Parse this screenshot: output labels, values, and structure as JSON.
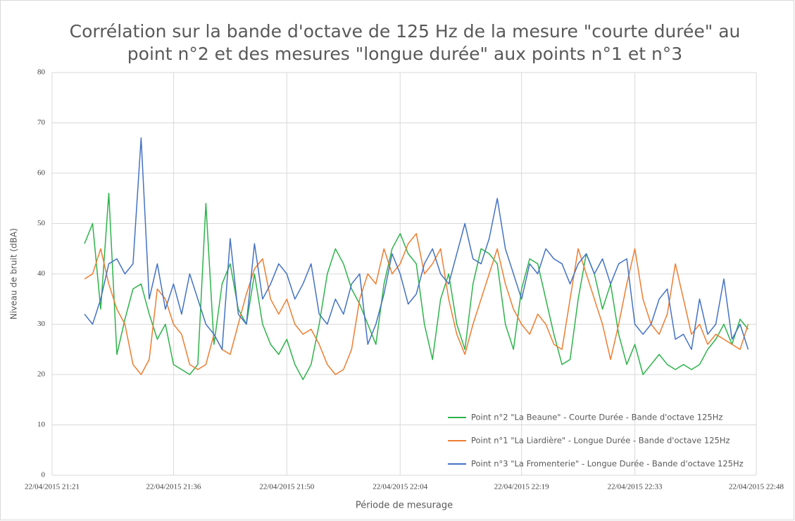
{
  "chart_data": {
    "type": "line",
    "title": [
      "Corrélation sur la bande d'octave de 125 Hz de la mesure \"courte durée\" au",
      "point n°2 et des mesures \"longue durée\" aux points n°1 et n°3"
    ],
    "x_label": "Période de mesurage",
    "y_label": "Niveau de bruit (dBA)",
    "x": [
      "22/04/2015 21:25",
      "22/04/2015 21:26",
      "22/04/2015 21:27",
      "22/04/2015 21:28",
      "22/04/2015 21:29",
      "22/04/2015 21:30",
      "22/04/2015 21:31",
      "22/04/2015 21:32",
      "22/04/2015 21:33",
      "22/04/2015 21:34",
      "22/04/2015 21:35",
      "22/04/2015 21:36",
      "22/04/2015 21:37",
      "22/04/2015 21:38",
      "22/04/2015 21:39",
      "22/04/2015 21:40",
      "22/04/2015 21:41",
      "22/04/2015 21:42",
      "22/04/2015 21:43",
      "22/04/2015 21:44",
      "22/04/2015 21:45",
      "22/04/2015 21:46",
      "22/04/2015 21:47",
      "22/04/2015 21:48",
      "22/04/2015 21:49",
      "22/04/2015 21:50",
      "22/04/2015 21:51",
      "22/04/2015 21:52",
      "22/04/2015 21:53",
      "22/04/2015 21:54",
      "22/04/2015 21:55",
      "22/04/2015 21:56",
      "22/04/2015 21:57",
      "22/04/2015 21:58",
      "22/04/2015 21:59",
      "22/04/2015 22:00",
      "22/04/2015 22:01",
      "22/04/2015 22:02",
      "22/04/2015 22:03",
      "22/04/2015 22:04",
      "22/04/2015 22:05",
      "22/04/2015 22:06",
      "22/04/2015 22:07",
      "22/04/2015 22:08",
      "22/04/2015 22:09",
      "22/04/2015 22:10",
      "22/04/2015 22:11",
      "22/04/2015 22:12",
      "22/04/2015 22:13",
      "22/04/2015 22:14",
      "22/04/2015 22:15",
      "22/04/2015 22:16",
      "22/04/2015 22:17",
      "22/04/2015 22:18",
      "22/04/2015 22:19",
      "22/04/2015 22:20",
      "22/04/2015 22:21",
      "22/04/2015 22:22",
      "22/04/2015 22:23",
      "22/04/2015 22:24",
      "22/04/2015 22:25",
      "22/04/2015 22:26",
      "22/04/2015 22:27",
      "22/04/2015 22:28",
      "22/04/2015 22:29",
      "22/04/2015 22:30",
      "22/04/2015 22:31",
      "22/04/2015 22:32",
      "22/04/2015 22:33",
      "22/04/2015 22:34",
      "22/04/2015 22:35",
      "22/04/2015 22:36",
      "22/04/2015 22:37",
      "22/04/2015 22:38",
      "22/04/2015 22:39",
      "22/04/2015 22:40",
      "22/04/2015 22:41",
      "22/04/2015 22:42",
      "22/04/2015 22:43",
      "22/04/2015 22:44",
      "22/04/2015 22:45",
      "22/04/2015 22:46",
      "22/04/2015 22:47"
    ],
    "series": [
      {
        "name": "Point n°2 \"La Beaune\" - Courte Durée - Bande d'octave 125Hz",
        "color": "#2db34a",
        "values": [
          46,
          50,
          33,
          56,
          24,
          31,
          37,
          38,
          32,
          27,
          30,
          22,
          21,
          20,
          22,
          54,
          26,
          38,
          42,
          33,
          30,
          40,
          30,
          26,
          24,
          27,
          22,
          19,
          22,
          30,
          40,
          45,
          42,
          37,
          34,
          30,
          26,
          38,
          45,
          48,
          44,
          42,
          30,
          23,
          35,
          40,
          30,
          25,
          38,
          45,
          44,
          42,
          30,
          25,
          37,
          43,
          42,
          35,
          28,
          22,
          23,
          35,
          44,
          40,
          33,
          38,
          28,
          22,
          26,
          20,
          22,
          24,
          22,
          21,
          22,
          21,
          22,
          25,
          27,
          30,
          26,
          31,
          29
        ]
      },
      {
        "name": "Point n°1 \"La Liardière\" - Longue Durée - Bande d'octave 125Hz",
        "color": "#ed7d31",
        "values": [
          39,
          40,
          45,
          38,
          33,
          30,
          22,
          20,
          23,
          37,
          35,
          30,
          28,
          22,
          21,
          22,
          28,
          25,
          24,
          30,
          36,
          41,
          43,
          35,
          32,
          35,
          30,
          28,
          29,
          26,
          22,
          20,
          21,
          25,
          35,
          40,
          38,
          45,
          40,
          42,
          46,
          48,
          40,
          42,
          45,
          35,
          28,
          24,
          30,
          35,
          40,
          45,
          38,
          33,
          30,
          28,
          32,
          30,
          26,
          25,
          35,
          45,
          40,
          35,
          30,
          23,
          30,
          38,
          45,
          35,
          30,
          28,
          32,
          42,
          35,
          28,
          30,
          26,
          28,
          27,
          26,
          25,
          30
        ]
      },
      {
        "name": "Point n°3 \"La Fromenterie\" - Longue Durée - Bande d'octave 125Hz",
        "color": "#4472c4",
        "values": [
          32,
          30,
          35,
          42,
          43,
          40,
          42,
          67,
          35,
          42,
          33,
          38,
          32,
          40,
          35,
          30,
          28,
          25,
          47,
          32,
          30,
          46,
          35,
          38,
          42,
          40,
          35,
          38,
          42,
          32,
          30,
          35,
          32,
          38,
          40,
          26,
          30,
          36,
          44,
          40,
          34,
          36,
          42,
          45,
          40,
          38,
          44,
          50,
          43,
          42,
          47,
          55,
          45,
          40,
          35,
          42,
          40,
          45,
          43,
          42,
          38,
          42,
          44,
          40,
          43,
          38,
          42,
          43,
          30,
          28,
          30,
          35,
          37,
          27,
          28,
          25,
          35,
          28,
          30,
          39,
          27,
          30,
          25
        ]
      }
    ],
    "xlim": [
      "22/04/2015 21:21",
      "22/04/2015 22:48"
    ],
    "xticks": [
      "22/04/2015 21:21",
      "22/04/2015 21:36",
      "22/04/2015 21:50",
      "22/04/2015 22:04",
      "22/04/2015 22:19",
      "22/04/2015 22:33",
      "22/04/2015 22:48"
    ],
    "ylim": [
      0,
      80
    ],
    "yticks": [
      0,
      10,
      20,
      30,
      40,
      50,
      60,
      70,
      80
    ],
    "grid": true,
    "legend": "lower right"
  }
}
